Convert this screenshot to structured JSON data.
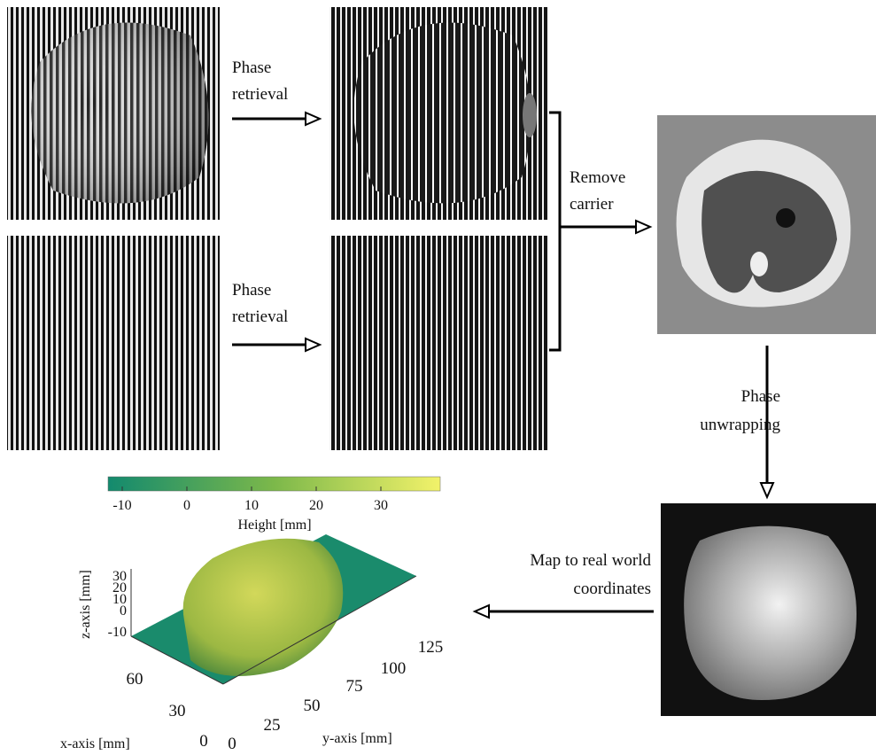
{
  "steps": [
    {
      "lines": [
        "Phase",
        "retrieval"
      ]
    },
    {
      "lines": [
        "Phase",
        "retrieval"
      ]
    },
    {
      "lines": [
        "Remove",
        "carrier"
      ]
    },
    {
      "lines": [
        "Phase",
        "unwrapping"
      ]
    },
    {
      "lines": [
        "Map to real world",
        "coordinates"
      ]
    }
  ],
  "plot": {
    "colorbar": {
      "ticks": [
        -10,
        0,
        10,
        20,
        30
      ],
      "label": "Height [mm]"
    },
    "z_axis": {
      "ticks": [
        30,
        20,
        10,
        0,
        -10
      ],
      "label": "z-axis [mm]"
    },
    "x_axis": {
      "ticks": [
        60,
        30,
        0
      ],
      "label": "x-axis [mm]"
    },
    "y_axis": {
      "ticks": [
        0,
        25,
        50,
        75,
        100,
        125
      ],
      "label": "y-axis [mm]"
    }
  }
}
